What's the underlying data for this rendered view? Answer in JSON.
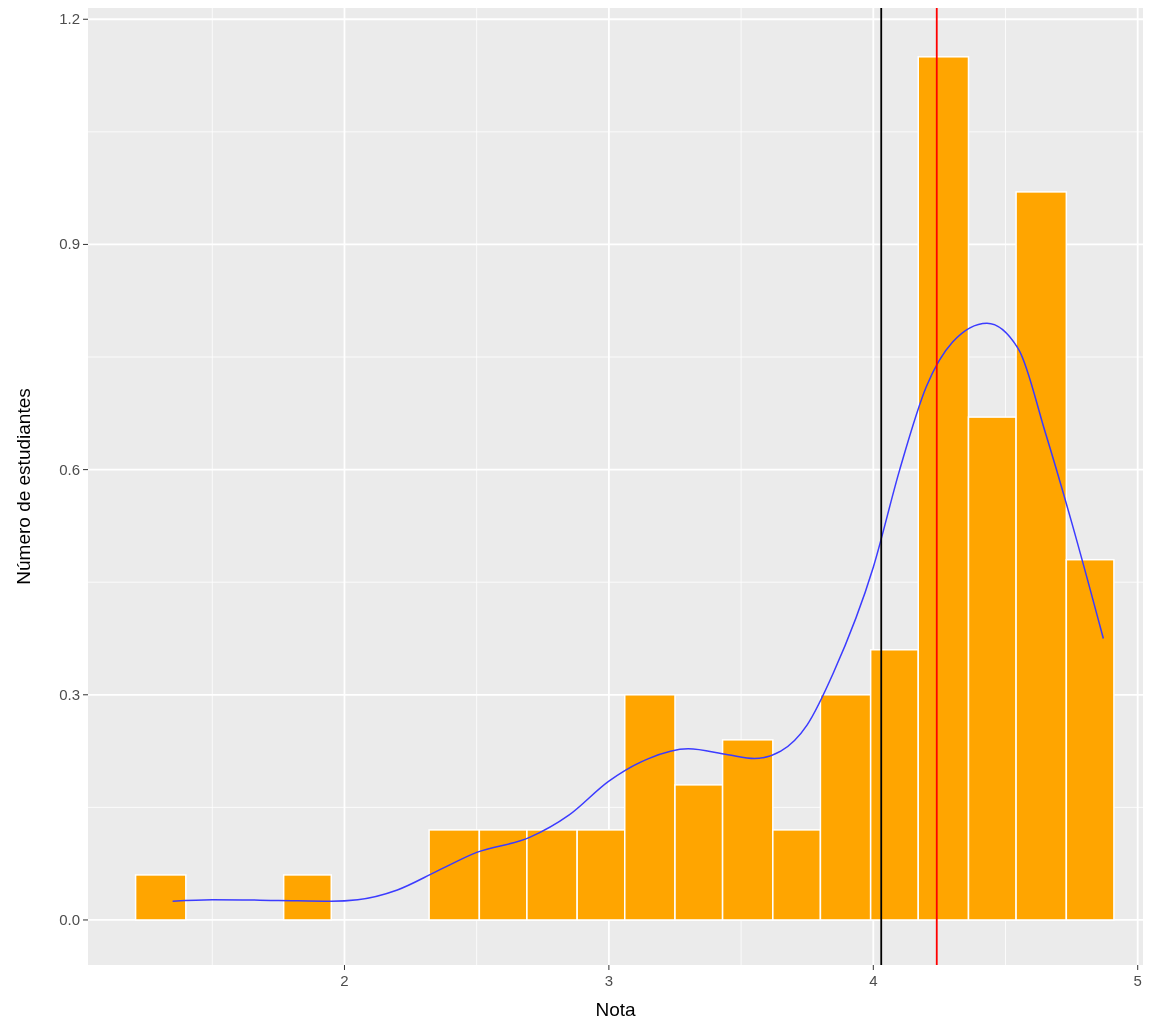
{
  "chart_data": {
    "type": "histogram",
    "xlabel": "Nota",
    "ylabel": "Número de estudiantes",
    "bins": [
      1.21,
      1.4,
      1.77,
      1.95,
      2.32,
      2.51,
      2.69,
      2.88,
      3.06,
      3.25,
      3.43,
      3.62,
      3.8,
      3.99,
      4.17,
      4.36,
      4.54,
      4.73,
      4.91
    ],
    "values": [
      0.06,
      0,
      0.06,
      0,
      0.12,
      0.12,
      0.12,
      0.12,
      0.3,
      0.18,
      0.24,
      0.12,
      0.3,
      0.36,
      1.15,
      0.67,
      0.97,
      0.48
    ],
    "color": "#ffa500",
    "series": [
      {
        "type": "line",
        "color": "#3b3bff",
        "x": [
          1.35,
          1.5,
          1.75,
          1.95,
          2.05,
          2.2,
          2.35,
          2.5,
          2.7,
          2.85,
          3.0,
          3.15,
          3.3,
          3.45,
          3.55,
          3.65,
          3.75,
          3.85,
          4.0,
          4.1,
          4.2,
          4.3,
          4.43,
          4.55,
          4.65,
          4.75,
          4.87
        ],
        "values": [
          0.025,
          0.027,
          0.026,
          0.025,
          0.027,
          0.04,
          0.065,
          0.09,
          0.11,
          0.14,
          0.185,
          0.215,
          0.228,
          0.22,
          0.215,
          0.225,
          0.26,
          0.33,
          0.47,
          0.6,
          0.71,
          0.77,
          0.795,
          0.76,
          0.65,
          0.53,
          0.375
        ]
      }
    ],
    "ref_lines": [
      {
        "axis": "x",
        "value": 4.03,
        "color": "#000000"
      },
      {
        "axis": "x",
        "value": 4.24,
        "color": "#ff0000"
      }
    ],
    "xlim": [
      1.03,
      5.02
    ],
    "ylim": [
      -0.06,
      1.215
    ],
    "xticks": [
      2,
      3,
      4,
      5
    ],
    "yticks": [
      {
        "value": 0,
        "label": "0.0"
      },
      {
        "value": 0.3,
        "label": "0.3"
      },
      {
        "value": 0.6,
        "label": "0.6"
      },
      {
        "value": 0.9,
        "label": "0.9"
      },
      {
        "value": 1.2,
        "label": "1.2"
      }
    ],
    "grid": true
  }
}
